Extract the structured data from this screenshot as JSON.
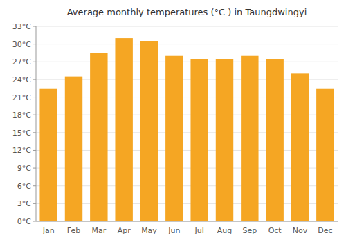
{
  "chart_data": {
    "type": "bar",
    "title": "Average monthly temperatures (°C ) in Taungdwingyi",
    "categories": [
      "Jan",
      "Feb",
      "Mar",
      "Apr",
      "May",
      "Jun",
      "Jul",
      "Aug",
      "Sep",
      "Oct",
      "Nov",
      "Dec"
    ],
    "values": [
      22.5,
      24.5,
      28.5,
      31.0,
      30.5,
      28.0,
      27.5,
      27.5,
      28.0,
      27.5,
      25.0,
      22.5
    ],
    "color": "#F5A623",
    "ylim": [
      0,
      33
    ],
    "yticks": [
      {
        "value": 0,
        "label": "0°C"
      },
      {
        "value": 3,
        "label": "3°C"
      },
      {
        "value": 6,
        "label": "6°C"
      },
      {
        "value": 9,
        "label": "9°C"
      },
      {
        "value": 12,
        "label": "12°C"
      },
      {
        "value": 15,
        "label": "15°C"
      },
      {
        "value": 18,
        "label": "18°C"
      },
      {
        "value": 21,
        "label": "21°C"
      },
      {
        "value": 24,
        "label": "24°C"
      },
      {
        "value": 27,
        "label": "27°C"
      },
      {
        "value": 30,
        "label": "30°C"
      },
      {
        "value": 33,
        "label": "33°C"
      }
    ],
    "grid": true
  }
}
